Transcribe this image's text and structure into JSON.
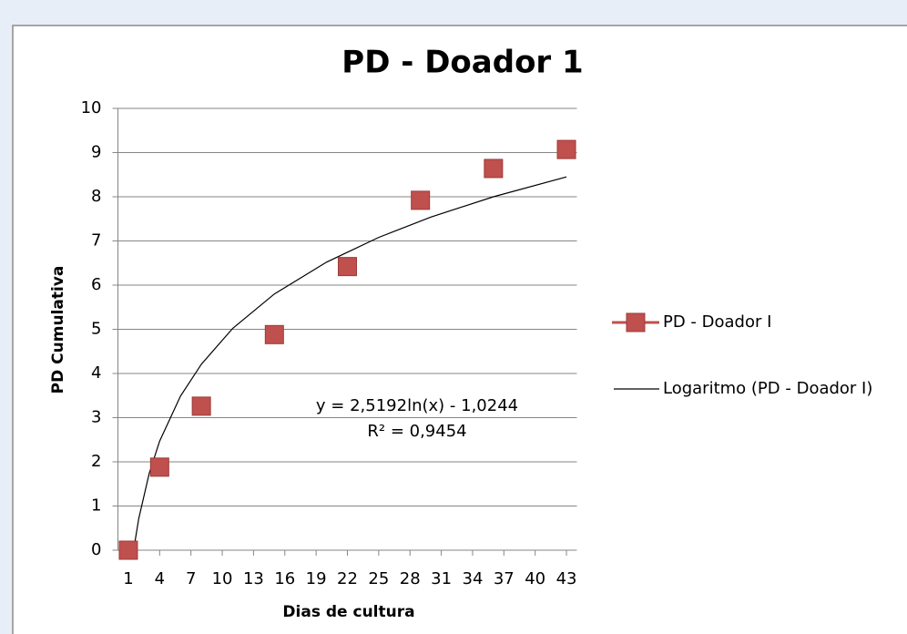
{
  "chart_data": {
    "type": "scatter",
    "title": "PD - Doador 1",
    "xlabel": "Dias  de cultura",
    "ylabel": "PD Cumulativa",
    "xlim": [
      0,
      44
    ],
    "ylim": [
      0,
      10
    ],
    "xticks": [
      1,
      4,
      7,
      10,
      13,
      16,
      19,
      22,
      25,
      28,
      31,
      34,
      37,
      40,
      43
    ],
    "yticks": [
      0,
      1,
      2,
      3,
      4,
      5,
      6,
      7,
      8,
      9,
      10
    ],
    "grid": true,
    "series": [
      {
        "name": "PD - Doador I",
        "color": "#c0504d",
        "x": [
          1,
          4,
          8,
          15,
          22,
          29,
          36,
          43
        ],
        "values": [
          0,
          1.88,
          3.26,
          4.88,
          6.42,
          7.92,
          8.64,
          9.07
        ]
      }
    ],
    "trendline": {
      "name": "Logaritmo (PD - Doador I)",
      "color": "#000000",
      "x": [
        1.5,
        2,
        3,
        4,
        6,
        8,
        11,
        15,
        20,
        25,
        30,
        36,
        43
      ],
      "values": [
        0,
        0.72,
        1.74,
        2.47,
        3.49,
        4.21,
        5.02,
        5.8,
        6.52,
        7.08,
        7.54,
        8.0,
        8.45
      ]
    },
    "annotations": [
      "y = 2,5192ln(x) - 1,0244",
      "R² = 0,9454"
    ]
  }
}
